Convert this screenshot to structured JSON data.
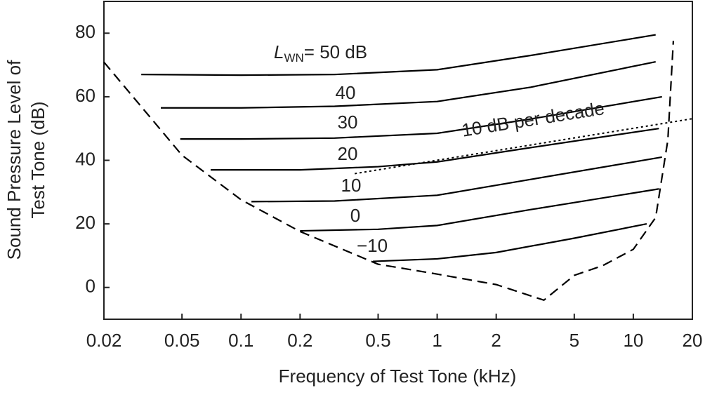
{
  "chart_data": {
    "type": "line",
    "ylabel": [
      "Sound Pressure Level of",
      "Test Tone (dB)"
    ],
    "xlabel": "Frequency of Test Tone (kHz)",
    "xscale": "log",
    "xlim": [
      0.02,
      20
    ],
    "xticks": [
      0.02,
      0.05,
      0.1,
      0.2,
      0.5,
      1,
      2,
      5,
      10,
      20
    ],
    "ylim": [
      -10,
      90
    ],
    "yticks": [
      0,
      20,
      40,
      60,
      80
    ],
    "label_symbol": "L",
    "label_subscript": "WN",
    "series": [
      {
        "name": "= 50 dB",
        "style": "solid",
        "color": "#000000",
        "x": [
          0.031,
          0.1,
          0.3,
          1,
          3,
          13
        ],
        "values": [
          67,
          66.8,
          67,
          68.5,
          73,
          79.5
        ]
      },
      {
        "name": "40",
        "style": "solid",
        "color": "#000000",
        "x": [
          0.039,
          0.1,
          0.3,
          1,
          3,
          13
        ],
        "values": [
          56.5,
          56.5,
          57,
          58.5,
          63,
          71
        ]
      },
      {
        "name": "30",
        "style": "solid",
        "color": "#000000",
        "x": [
          0.049,
          0.1,
          0.3,
          1,
          3,
          14
        ],
        "values": [
          46.7,
          46.7,
          47,
          48.5,
          53,
          60
        ]
      },
      {
        "name": "20",
        "style": "solid",
        "color": "#000000",
        "x": [
          0.07,
          0.2,
          0.5,
          1,
          3,
          13.5
        ],
        "values": [
          37,
          37,
          38,
          39.5,
          44,
          50
        ]
      },
      {
        "name": "10",
        "style": "solid",
        "color": "#000000",
        "x": [
          0.113,
          0.3,
          1,
          3,
          14
        ],
        "values": [
          27,
          27.2,
          29,
          34,
          41
        ]
      },
      {
        "name": "0",
        "style": "solid",
        "color": "#000000",
        "x": [
          0.2,
          0.5,
          1,
          3,
          13.5
        ],
        "values": [
          17.8,
          18.3,
          19.5,
          24.5,
          31
        ]
      },
      {
        "name": "−10",
        "style": "solid",
        "color": "#000000",
        "x": [
          0.47,
          1,
          2,
          5,
          11.7
        ],
        "values": [
          8.2,
          9,
          11,
          15.5,
          20
        ]
      },
      {
        "style": "dashed",
        "color": "#000000",
        "x": [
          0.02,
          0.05,
          0.1,
          0.2,
          0.5,
          1,
          2,
          3.5,
          5,
          7,
          10,
          13,
          15,
          16
        ],
        "values": [
          70.9,
          41.6,
          27.6,
          17.6,
          7.3,
          4.2,
          0.9,
          -4,
          3.8,
          6.9,
          12,
          22,
          46.4,
          77.6
        ]
      },
      {
        "name": "10 dB per decade",
        "style": "dotted",
        "color": "#000000",
        "x": [
          0.38,
          20
        ],
        "values": [
          35.8,
          53.1
        ]
      }
    ]
  }
}
